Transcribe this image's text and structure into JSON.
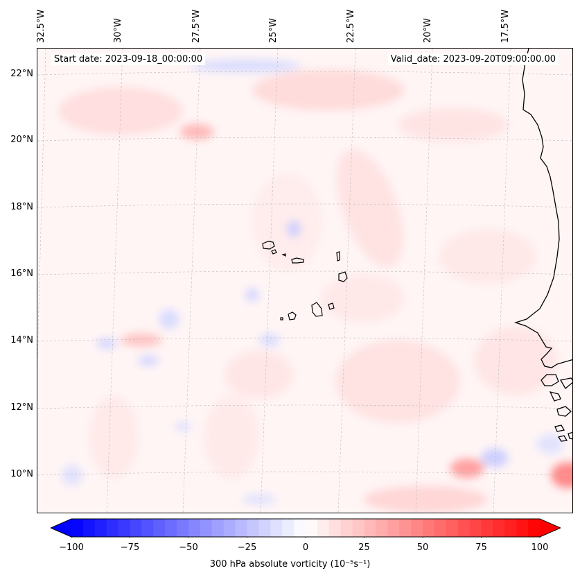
{
  "map": {
    "start_date": "Start date: 2023-09-18_00:00:00",
    "valid_date": "Valid_date: 2023-09-20T09:00:00.00",
    "lon_labels": [
      "32.5°W",
      "30°W",
      "27.5°W",
      "25°W",
      "22.5°W",
      "20°W",
      "17.5°W"
    ],
    "lat_labels": [
      "22°N",
      "20°N",
      "18°N",
      "16°N",
      "14°N",
      "12°N",
      "10°N"
    ]
  },
  "colorbar": {
    "min": -100,
    "max": 100,
    "ticks": [
      "−100",
      "−75",
      "−50",
      "−25",
      "0",
      "25",
      "50",
      "75",
      "100"
    ],
    "label": "300 hPa absolute vorticity (10⁻⁵s⁻¹)",
    "low_color": "#0000ff",
    "mid_color": "#ffffff",
    "high_color": "#ff0000"
  }
}
